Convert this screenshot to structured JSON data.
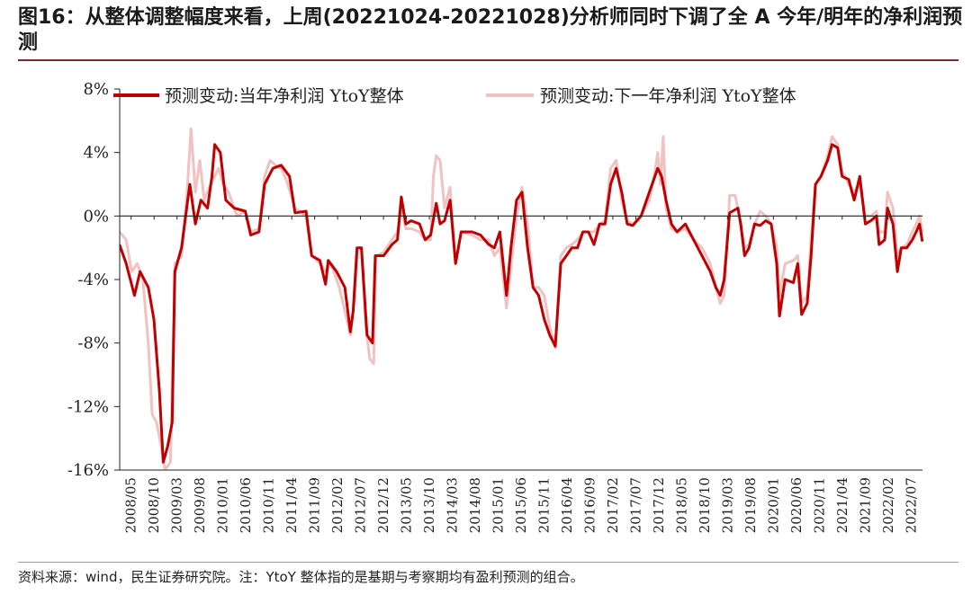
{
  "header": {
    "title": "图16：从整体调整幅度来看，上周(20221024-20221028)分析师同时下调了全 A 今年/明年的净利润预测"
  },
  "footer": {
    "source": "资料来源：wind，民生证券研究院。注：YtoY 整体指的是基期与考察期均有盈利预测的组合。"
  },
  "chart_data": {
    "type": "line",
    "title": "",
    "xlabel": "",
    "ylabel": "",
    "ylim": [
      -16,
      8
    ],
    "yticks": [
      8,
      4,
      0,
      -4,
      -8,
      -12,
      -16
    ],
    "ytick_labels": [
      "8%",
      "4%",
      "0%",
      "-4%",
      "-8%",
      "-12%",
      "-16%"
    ],
    "x_range": [
      2008.333,
      2022.833
    ],
    "x_tick_labels": [
      "2008/05",
      "2008/10",
      "2009/03",
      "2009/08",
      "2010/01",
      "2010/06",
      "2010/11",
      "2011/04",
      "2011/09",
      "2012/02",
      "2012/07",
      "2012/12",
      "2013/05",
      "2013/10",
      "2014/03",
      "2014/08",
      "2015/01",
      "2015/06",
      "2015/11",
      "2016/04",
      "2016/09",
      "2017/02",
      "2017/07",
      "2017/12",
      "2018/05",
      "2018/10",
      "2019/03",
      "2019/08",
      "2020/01",
      "2020/06",
      "2020/11",
      "2021/04",
      "2021/09",
      "2022/02",
      "2022/07"
    ],
    "legend_position": "top",
    "series": [
      {
        "name": "预测变动:当年净利润 YtoY整体",
        "color": "#c00000",
        "width": 3,
        "points": [
          [
            2008.33,
            -1.8
          ],
          [
            2008.45,
            -3.0
          ],
          [
            2008.6,
            -5.0
          ],
          [
            2008.7,
            -3.5
          ],
          [
            2008.85,
            -4.5
          ],
          [
            2008.95,
            -6.5
          ],
          [
            2009.05,
            -11.0
          ],
          [
            2009.12,
            -15.5
          ],
          [
            2009.2,
            -14.5
          ],
          [
            2009.28,
            -13.0
          ],
          [
            2009.33,
            -3.5
          ],
          [
            2009.45,
            -2.0
          ],
          [
            2009.6,
            2.0
          ],
          [
            2009.7,
            -0.5
          ],
          [
            2009.8,
            1.0
          ],
          [
            2009.92,
            0.5
          ],
          [
            2010.0,
            2.5
          ],
          [
            2010.05,
            4.5
          ],
          [
            2010.15,
            4.0
          ],
          [
            2010.25,
            1.0
          ],
          [
            2010.4,
            0.5
          ],
          [
            2010.6,
            0.3
          ],
          [
            2010.7,
            -1.2
          ],
          [
            2010.85,
            -1.0
          ],
          [
            2010.95,
            2.0
          ],
          [
            2011.1,
            3.0
          ],
          [
            2011.25,
            3.2
          ],
          [
            2011.4,
            2.5
          ],
          [
            2011.5,
            0.2
          ],
          [
            2011.7,
            0.3
          ],
          [
            2011.8,
            -2.5
          ],
          [
            2011.95,
            -2.8
          ],
          [
            2012.05,
            -4.3
          ],
          [
            2012.1,
            -2.8
          ],
          [
            2012.25,
            -3.5
          ],
          [
            2012.4,
            -4.5
          ],
          [
            2012.5,
            -7.3
          ],
          [
            2012.55,
            -6.0
          ],
          [
            2012.62,
            -2.0
          ],
          [
            2012.7,
            -2.0
          ],
          [
            2012.8,
            -7.5
          ],
          [
            2012.9,
            -8.0
          ],
          [
            2012.95,
            -2.5
          ],
          [
            2013.1,
            -2.5
          ],
          [
            2013.25,
            -1.8
          ],
          [
            2013.35,
            -1.5
          ],
          [
            2013.42,
            1.2
          ],
          [
            2013.5,
            -0.5
          ],
          [
            2013.6,
            -0.3
          ],
          [
            2013.75,
            -0.5
          ],
          [
            2013.85,
            -1.5
          ],
          [
            2013.95,
            -1.2
          ],
          [
            2014.05,
            0.8
          ],
          [
            2014.12,
            -0.5
          ],
          [
            2014.2,
            -0.3
          ],
          [
            2014.3,
            1.0
          ],
          [
            2014.4,
            -3.0
          ],
          [
            2014.5,
            -1.0
          ],
          [
            2014.7,
            -1.0
          ],
          [
            2014.85,
            -1.2
          ],
          [
            2015.0,
            -1.8
          ],
          [
            2015.1,
            -2.0
          ],
          [
            2015.2,
            -1.0
          ],
          [
            2015.32,
            -5.0
          ],
          [
            2015.4,
            -2.0
          ],
          [
            2015.5,
            1.0
          ],
          [
            2015.6,
            1.5
          ],
          [
            2015.7,
            -2.0
          ],
          [
            2015.8,
            -4.5
          ],
          [
            2015.9,
            -5.0
          ],
          [
            2016.0,
            -6.5
          ],
          [
            2016.1,
            -7.5
          ],
          [
            2016.2,
            -8.2
          ],
          [
            2016.3,
            -3.0
          ],
          [
            2016.4,
            -2.5
          ],
          [
            2016.5,
            -2.0
          ],
          [
            2016.6,
            -2.0
          ],
          [
            2016.7,
            -1.0
          ],
          [
            2016.8,
            -1.0
          ],
          [
            2016.9,
            -1.8
          ],
          [
            2017.0,
            -0.5
          ],
          [
            2017.1,
            -0.5
          ],
          [
            2017.2,
            2.0
          ],
          [
            2017.3,
            3.0
          ],
          [
            2017.4,
            1.5
          ],
          [
            2017.5,
            -0.5
          ],
          [
            2017.6,
            -0.6
          ],
          [
            2017.75,
            0.0
          ],
          [
            2017.9,
            1.5
          ],
          [
            2018.0,
            2.5
          ],
          [
            2018.05,
            3.0
          ],
          [
            2018.12,
            2.5
          ],
          [
            2018.2,
            1.0
          ],
          [
            2018.3,
            -0.5
          ],
          [
            2018.4,
            -1.0
          ],
          [
            2018.55,
            -0.5
          ],
          [
            2018.7,
            -1.5
          ],
          [
            2018.85,
            -2.5
          ],
          [
            2019.0,
            -3.5
          ],
          [
            2019.1,
            -4.5
          ],
          [
            2019.18,
            -5.0
          ],
          [
            2019.25,
            -4.0
          ],
          [
            2019.35,
            0.2
          ],
          [
            2019.5,
            0.5
          ],
          [
            2019.55,
            -0.5
          ],
          [
            2019.62,
            -2.5
          ],
          [
            2019.7,
            -2.0
          ],
          [
            2019.8,
            -0.5
          ],
          [
            2019.9,
            -0.6
          ],
          [
            2020.0,
            -0.3
          ],
          [
            2020.1,
            -0.5
          ],
          [
            2020.2,
            -3.0
          ],
          [
            2020.25,
            -6.3
          ],
          [
            2020.35,
            -4.0
          ],
          [
            2020.5,
            -4.2
          ],
          [
            2020.58,
            -3.0
          ],
          [
            2020.65,
            -6.2
          ],
          [
            2020.75,
            -5.5
          ],
          [
            2020.82,
            -2.5
          ],
          [
            2020.9,
            2.0
          ],
          [
            2021.0,
            2.5
          ],
          [
            2021.12,
            3.5
          ],
          [
            2021.2,
            4.5
          ],
          [
            2021.3,
            4.3
          ],
          [
            2021.38,
            2.5
          ],
          [
            2021.5,
            2.3
          ],
          [
            2021.6,
            1.0
          ],
          [
            2021.7,
            2.5
          ],
          [
            2021.8,
            -0.5
          ],
          [
            2021.9,
            -0.3
          ],
          [
            2022.0,
            0.0
          ],
          [
            2022.05,
            -1.8
          ],
          [
            2022.15,
            -1.5
          ],
          [
            2022.2,
            0.5
          ],
          [
            2022.3,
            -0.5
          ],
          [
            2022.38,
            -3.5
          ],
          [
            2022.45,
            -2.0
          ],
          [
            2022.55,
            -2.0
          ],
          [
            2022.65,
            -1.5
          ],
          [
            2022.72,
            -1.0
          ],
          [
            2022.78,
            -0.5
          ],
          [
            2022.83,
            -1.6
          ]
        ]
      },
      {
        "name": "预测变动:下一年净利润 YtoY整体",
        "color": "#f0c2c2",
        "width": 3,
        "points": [
          [
            2008.33,
            -1.0
          ],
          [
            2008.45,
            -1.5
          ],
          [
            2008.55,
            -3.5
          ],
          [
            2008.65,
            -3.0
          ],
          [
            2008.75,
            -4.0
          ],
          [
            2008.85,
            -8.0
          ],
          [
            2008.92,
            -12.5
          ],
          [
            2009.0,
            -13.0
          ],
          [
            2009.08,
            -14.5
          ],
          [
            2009.15,
            -16.0
          ],
          [
            2009.25,
            -15.5
          ],
          [
            2009.33,
            -3.0
          ],
          [
            2009.45,
            -2.5
          ],
          [
            2009.55,
            1.5
          ],
          [
            2009.62,
            5.5
          ],
          [
            2009.7,
            1.5
          ],
          [
            2009.78,
            3.5
          ],
          [
            2009.86,
            1.0
          ],
          [
            2009.95,
            1.8
          ],
          [
            2010.05,
            2.5
          ],
          [
            2010.12,
            3.0
          ],
          [
            2010.2,
            2.0
          ],
          [
            2010.3,
            1.5
          ],
          [
            2010.45,
            0.0
          ],
          [
            2010.6,
            0.3
          ],
          [
            2010.7,
            -1.0
          ],
          [
            2010.85,
            -0.8
          ],
          [
            2010.95,
            2.5
          ],
          [
            2011.05,
            3.5
          ],
          [
            2011.15,
            3.2
          ],
          [
            2011.25,
            3.0
          ],
          [
            2011.35,
            2.2
          ],
          [
            2011.5,
            0.5
          ],
          [
            2011.7,
            0.0
          ],
          [
            2011.8,
            -2.5
          ],
          [
            2011.95,
            -3.0
          ],
          [
            2012.05,
            -3.5
          ],
          [
            2012.15,
            -3.0
          ],
          [
            2012.3,
            -4.5
          ],
          [
            2012.4,
            -6.0
          ],
          [
            2012.5,
            -7.5
          ],
          [
            2012.58,
            -5.0
          ],
          [
            2012.63,
            -2.0
          ],
          [
            2012.7,
            -2.0
          ],
          [
            2012.78,
            -7.0
          ],
          [
            2012.85,
            -9.0
          ],
          [
            2012.92,
            -9.3
          ],
          [
            2012.96,
            -2.5
          ],
          [
            2013.1,
            -2.3
          ],
          [
            2013.25,
            -1.5
          ],
          [
            2013.35,
            -1.0
          ],
          [
            2013.42,
            0.5
          ],
          [
            2013.5,
            -0.8
          ],
          [
            2013.6,
            -0.8
          ],
          [
            2013.75,
            -1.0
          ],
          [
            2013.85,
            -1.5
          ],
          [
            2013.95,
            -1.5
          ],
          [
            2014.0,
            2.5
          ],
          [
            2014.05,
            3.8
          ],
          [
            2014.12,
            3.5
          ],
          [
            2014.2,
            0.5
          ],
          [
            2014.3,
            1.8
          ],
          [
            2014.4,
            -3.0
          ],
          [
            2014.5,
            -1.0
          ],
          [
            2014.7,
            -1.2
          ],
          [
            2014.85,
            -1.5
          ],
          [
            2015.0,
            -1.5
          ],
          [
            2015.1,
            -2.5
          ],
          [
            2015.2,
            -2.0
          ],
          [
            2015.32,
            -5.8
          ],
          [
            2015.42,
            -2.5
          ],
          [
            2015.5,
            0.0
          ],
          [
            2015.6,
            1.8
          ],
          [
            2015.7,
            -0.5
          ],
          [
            2015.8,
            -4.5
          ],
          [
            2015.9,
            -4.5
          ],
          [
            2016.0,
            -5.0
          ],
          [
            2016.1,
            -7.0
          ],
          [
            2016.2,
            -8.3
          ],
          [
            2016.3,
            -2.5
          ],
          [
            2016.4,
            -2.0
          ],
          [
            2016.5,
            -1.8
          ],
          [
            2016.6,
            -1.5
          ],
          [
            2016.7,
            -1.0
          ],
          [
            2016.8,
            -1.0
          ],
          [
            2016.9,
            -1.0
          ],
          [
            2017.0,
            -0.5
          ],
          [
            2017.1,
            -0.3
          ],
          [
            2017.2,
            3.0
          ],
          [
            2017.3,
            3.5
          ],
          [
            2017.4,
            1.0
          ],
          [
            2017.5,
            -0.3
          ],
          [
            2017.6,
            -0.5
          ],
          [
            2017.75,
            0.0
          ],
          [
            2017.9,
            1.0
          ],
          [
            2018.0,
            2.8
          ],
          [
            2018.05,
            4.0
          ],
          [
            2018.1,
            2.0
          ],
          [
            2018.15,
            5.0
          ],
          [
            2018.2,
            0.5
          ],
          [
            2018.3,
            -0.8
          ],
          [
            2018.4,
            -1.0
          ],
          [
            2018.55,
            -0.8
          ],
          [
            2018.7,
            -1.5
          ],
          [
            2018.85,
            -2.0
          ],
          [
            2019.0,
            -3.0
          ],
          [
            2019.1,
            -4.5
          ],
          [
            2019.18,
            -5.5
          ],
          [
            2019.25,
            -5.0
          ],
          [
            2019.35,
            1.3
          ],
          [
            2019.45,
            1.3
          ],
          [
            2019.55,
            -0.5
          ],
          [
            2019.62,
            -2.0
          ],
          [
            2019.7,
            -1.8
          ],
          [
            2019.8,
            -0.5
          ],
          [
            2019.9,
            0.3
          ],
          [
            2020.0,
            0.0
          ],
          [
            2020.1,
            -0.5
          ],
          [
            2020.2,
            -2.0
          ],
          [
            2020.25,
            -5.0
          ],
          [
            2020.35,
            -3.0
          ],
          [
            2020.5,
            -2.8
          ],
          [
            2020.58,
            -2.5
          ],
          [
            2020.65,
            -5.5
          ],
          [
            2020.75,
            -5.0
          ],
          [
            2020.82,
            -1.5
          ],
          [
            2020.9,
            2.0
          ],
          [
            2021.0,
            2.5
          ],
          [
            2021.12,
            3.8
          ],
          [
            2021.2,
            5.0
          ],
          [
            2021.3,
            4.5
          ],
          [
            2021.38,
            2.8
          ],
          [
            2021.5,
            2.0
          ],
          [
            2021.6,
            1.5
          ],
          [
            2021.7,
            2.0
          ],
          [
            2021.8,
            0.0
          ],
          [
            2021.9,
            0.0
          ],
          [
            2022.0,
            0.3
          ],
          [
            2022.05,
            -1.0
          ],
          [
            2022.15,
            -1.0
          ],
          [
            2022.2,
            1.5
          ],
          [
            2022.3,
            0.5
          ],
          [
            2022.38,
            -2.5
          ],
          [
            2022.45,
            -2.0
          ],
          [
            2022.55,
            -1.8
          ],
          [
            2022.65,
            -1.0
          ],
          [
            2022.72,
            -0.5
          ],
          [
            2022.78,
            0.0
          ],
          [
            2022.83,
            -1.0
          ]
        ]
      }
    ]
  }
}
